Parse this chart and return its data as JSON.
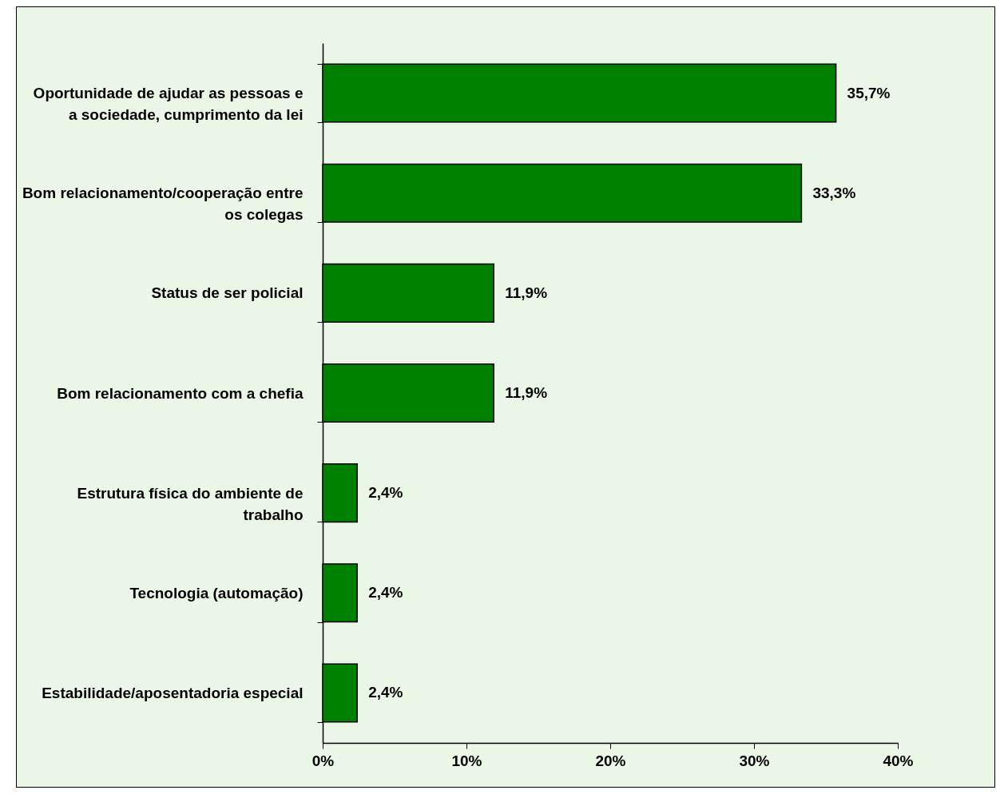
{
  "chart_data": {
    "type": "bar",
    "orientation": "horizontal",
    "categories": [
      "Oportunidade de ajudar as pessoas e a sociedade, cumprimento da lei",
      "Bom relacionamento/cooperação entre os colegas",
      "Status de ser policial",
      "Bom relacionamento com a chefia",
      "Estrutura física do ambiente de trabalho",
      "Tecnologia (automação)",
      "Estabilidade/aposentadoria especial"
    ],
    "values": [
      35.7,
      33.3,
      11.9,
      11.9,
      2.4,
      2.4,
      2.4
    ],
    "value_labels": [
      "35,7%",
      "33,3%",
      "11,9%",
      "11,9%",
      "2,4%",
      "2,4%",
      "2,4%"
    ],
    "color": "#008000",
    "xlim": [
      0,
      40
    ],
    "xticks": [
      {
        "value": 0,
        "label": "0%"
      },
      {
        "value": 10,
        "label": "10%"
      },
      {
        "value": 20,
        "label": "20%"
      },
      {
        "value": 30,
        "label": "30%"
      },
      {
        "value": 40,
        "label": "40%"
      }
    ],
    "grid": false
  }
}
